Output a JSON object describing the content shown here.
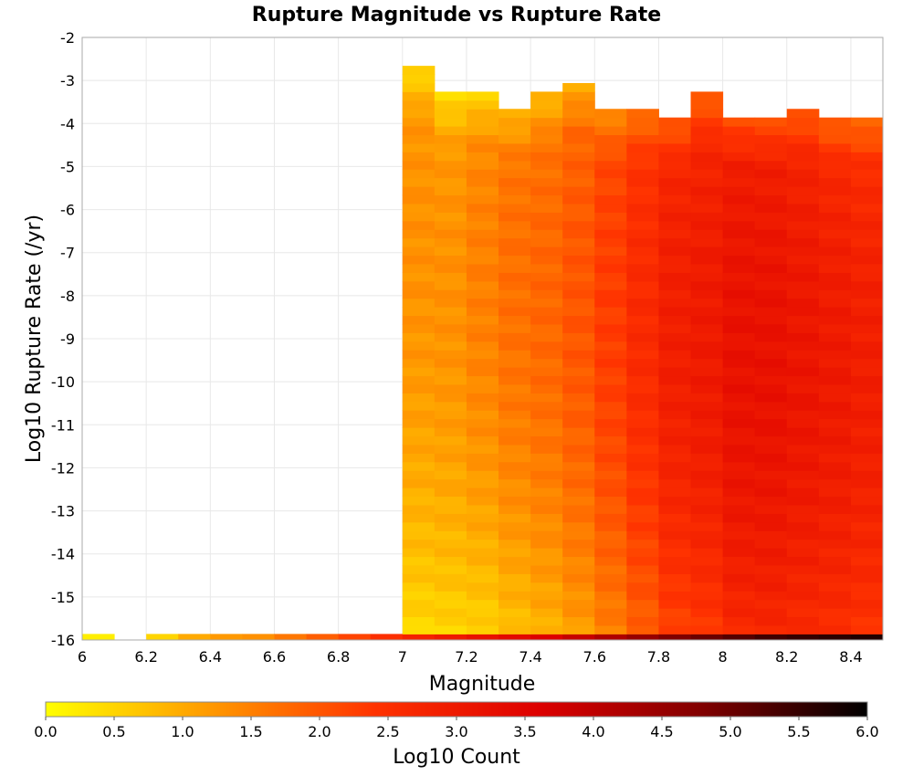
{
  "chart_data": {
    "type": "heatmap",
    "title": "Rupture Magnitude vs Rupture Rate",
    "xlabel": "Magnitude",
    "ylabel": "Log10 Rupture Rate (/yr)",
    "xlim": [
      6.0,
      8.5
    ],
    "ylim": [
      -16,
      -2
    ],
    "x_bin_width": 0.1,
    "y_bin_width": 0.2,
    "xticks": [
      "6",
      "6.2",
      "6.4",
      "6.6",
      "6.8",
      "7",
      "7.2",
      "7.4",
      "7.6",
      "7.8",
      "8",
      "8.2",
      "8.4"
    ],
    "yticks": [
      "-2",
      "-3",
      "-4",
      "-5",
      "-6",
      "-7",
      "-8",
      "-9",
      "-10",
      "-11",
      "-12",
      "-13",
      "-14",
      "-15",
      "-16"
    ],
    "grid": true,
    "colorbar": {
      "label": "Log10 Count",
      "range": [
        0.0,
        6.0
      ],
      "ticks": [
        "0.0",
        "0.5",
        "1.0",
        "1.5",
        "2.0",
        "2.5",
        "3.0",
        "3.5",
        "4.0",
        "4.5",
        "5.0",
        "5.5",
        "6.0"
      ],
      "colors": [
        "#ffff00",
        "#ff9900",
        "#ff3300",
        "#dd0000",
        "#800000",
        "#000000"
      ]
    },
    "bottom_row": {
      "y": -16,
      "cells": [
        {
          "x": 6.0,
          "v": 0.2
        },
        {
          "x": 6.2,
          "v": 0.5
        },
        {
          "x": 6.3,
          "v": 1.0
        },
        {
          "x": 6.4,
          "v": 1.2
        },
        {
          "x": 6.5,
          "v": 1.3
        },
        {
          "x": 6.6,
          "v": 1.6
        },
        {
          "x": 6.7,
          "v": 1.9
        },
        {
          "x": 6.8,
          "v": 2.2
        },
        {
          "x": 6.9,
          "v": 2.5
        },
        {
          "x": 7.0,
          "v": 2.8
        },
        {
          "x": 7.1,
          "v": 3.0
        },
        {
          "x": 7.2,
          "v": 3.2
        },
        {
          "x": 7.3,
          "v": 3.4
        },
        {
          "x": 7.4,
          "v": 3.6
        },
        {
          "x": 7.5,
          "v": 3.9
        },
        {
          "x": 7.6,
          "v": 4.2
        },
        {
          "x": 7.7,
          "v": 4.5
        },
        {
          "x": 7.8,
          "v": 4.8
        },
        {
          "x": 7.9,
          "v": 5.0
        },
        {
          "x": 8.0,
          "v": 5.2
        },
        {
          "x": 8.1,
          "v": 5.4
        },
        {
          "x": 8.2,
          "v": 5.5
        },
        {
          "x": 8.3,
          "v": 5.6
        },
        {
          "x": 8.4,
          "v": 5.7
        }
      ]
    },
    "columns": [
      {
        "x": 7.0,
        "top": -2.7,
        "max": 1.3,
        "peak": -6.5,
        "spread": 12
      },
      {
        "x": 7.1,
        "top": -3.3,
        "max": 1.3,
        "peak": -7.5,
        "spread": 11
      },
      {
        "x": 7.2,
        "top": -3.3,
        "max": 1.5,
        "peak": -7.5,
        "spread": 10
      },
      {
        "x": 7.3,
        "top": -3.6,
        "max": 1.7,
        "peak": -7.5,
        "spread": 10
      },
      {
        "x": 7.4,
        "top": -3.3,
        "max": 1.8,
        "peak": -7.8,
        "spread": 10
      },
      {
        "x": 7.5,
        "top": -3.0,
        "max": 2.0,
        "peak": -8.0,
        "spread": 10
      },
      {
        "x": 7.6,
        "top": -3.6,
        "max": 2.3,
        "peak": -8.2,
        "spread": 10
      },
      {
        "x": 7.7,
        "top": -3.6,
        "max": 2.6,
        "peak": -8.5,
        "spread": 10
      },
      {
        "x": 7.8,
        "top": -3.8,
        "max": 2.9,
        "peak": -8.8,
        "spread": 10
      },
      {
        "x": 7.9,
        "top": -3.3,
        "max": 3.0,
        "peak": -9.0,
        "spread": 10
      },
      {
        "x": 8.0,
        "top": -3.8,
        "max": 3.2,
        "peak": -9.5,
        "spread": 10
      },
      {
        "x": 8.1,
        "top": -3.8,
        "max": 3.2,
        "peak": -9.7,
        "spread": 10
      },
      {
        "x": 8.2,
        "top": -3.6,
        "max": 3.1,
        "peak": -9.8,
        "spread": 10
      },
      {
        "x": 8.3,
        "top": -3.8,
        "max": 3.0,
        "peak": -10.0,
        "spread": 10
      },
      {
        "x": 8.4,
        "top": -3.8,
        "max": 2.9,
        "peak": -10.0,
        "spread": 10
      }
    ]
  }
}
